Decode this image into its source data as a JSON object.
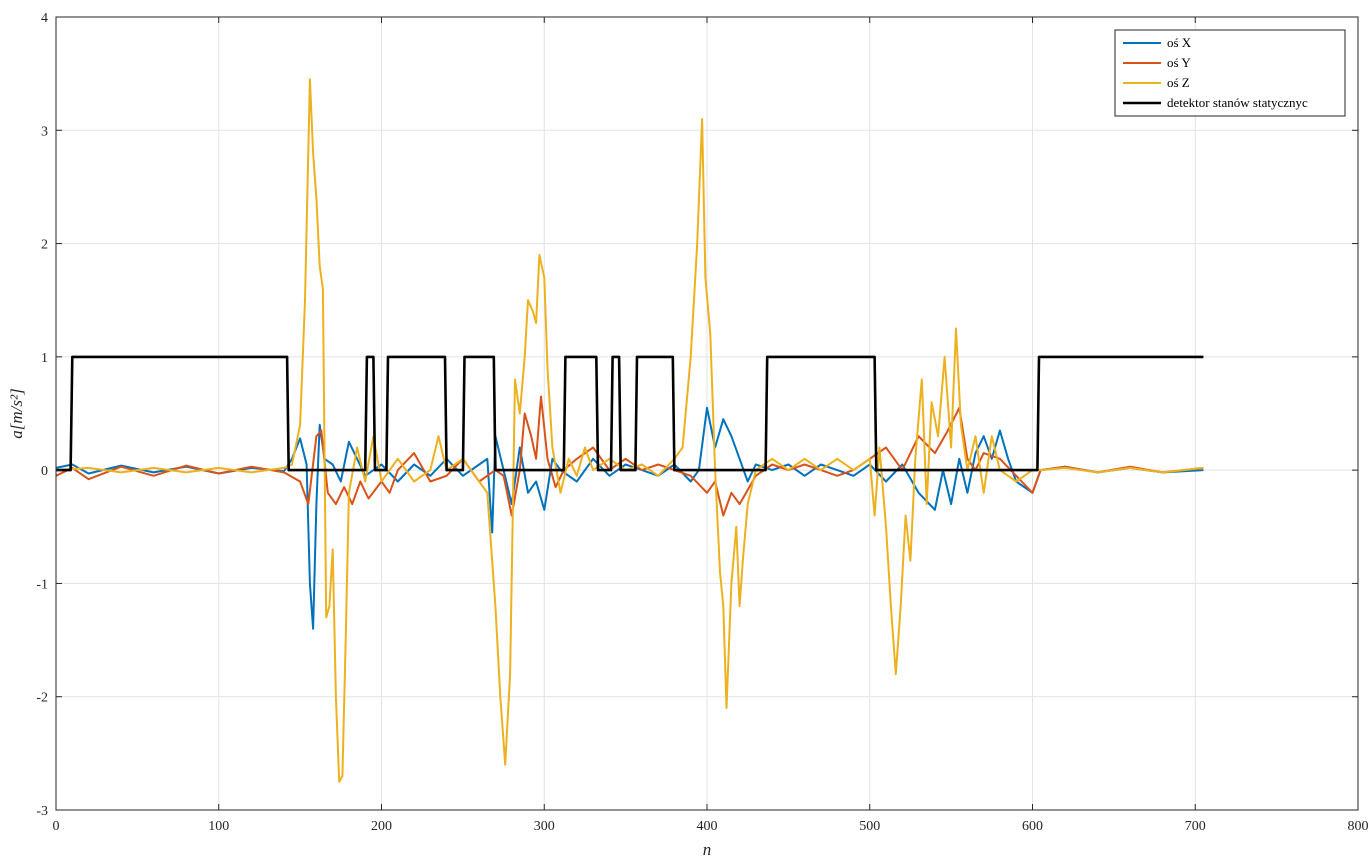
{
  "chart_data": {
    "type": "line",
    "title": "",
    "xlabel": "n",
    "ylabel": "a[m/s²]",
    "xlim": [
      0,
      800
    ],
    "ylim": [
      -3,
      4
    ],
    "xticks": [
      0,
      100,
      200,
      300,
      400,
      500,
      600,
      700,
      800
    ],
    "yticks": [
      -3,
      -2,
      -1,
      0,
      1,
      2,
      3,
      4
    ],
    "grid": true,
    "legend_position": "top-right",
    "series": [
      {
        "name": "oś X",
        "color": "#0072BD",
        "points": [
          [
            0,
            0.02
          ],
          [
            10,
            0.05
          ],
          [
            20,
            -0.03
          ],
          [
            40,
            0.04
          ],
          [
            60,
            -0.02
          ],
          [
            80,
            0.03
          ],
          [
            100,
            -0.03
          ],
          [
            120,
            0.02
          ],
          [
            140,
            -0.01
          ],
          [
            145,
            0.1
          ],
          [
            150,
            0.28
          ],
          [
            154,
            0.05
          ],
          [
            156,
            -1.0
          ],
          [
            158,
            -1.4
          ],
          [
            160,
            -0.3
          ],
          [
            162,
            0.4
          ],
          [
            165,
            0.1
          ],
          [
            170,
            0.05
          ],
          [
            175,
            -0.1
          ],
          [
            180,
            0.25
          ],
          [
            185,
            0.1
          ],
          [
            190,
            -0.05
          ],
          [
            200,
            0.05
          ],
          [
            210,
            -0.1
          ],
          [
            220,
            0.05
          ],
          [
            230,
            -0.05
          ],
          [
            240,
            0.1
          ],
          [
            250,
            -0.05
          ],
          [
            260,
            0.05
          ],
          [
            265,
            0.1
          ],
          [
            268,
            -0.55
          ],
          [
            270,
            0.3
          ],
          [
            275,
            0.0
          ],
          [
            280,
            -0.3
          ],
          [
            285,
            0.2
          ],
          [
            290,
            -0.2
          ],
          [
            295,
            -0.1
          ],
          [
            300,
            -0.35
          ],
          [
            305,
            0.1
          ],
          [
            310,
            0.0
          ],
          [
            320,
            -0.1
          ],
          [
            330,
            0.1
          ],
          [
            340,
            -0.05
          ],
          [
            350,
            0.05
          ],
          [
            360,
            0.0
          ],
          [
            370,
            -0.05
          ],
          [
            380,
            0.05
          ],
          [
            390,
            -0.1
          ],
          [
            395,
            0.0
          ],
          [
            400,
            0.55
          ],
          [
            405,
            0.2
          ],
          [
            410,
            0.45
          ],
          [
            415,
            0.3
          ],
          [
            420,
            0.1
          ],
          [
            425,
            -0.1
          ],
          [
            430,
            0.05
          ],
          [
            440,
            0.0
          ],
          [
            450,
            0.05
          ],
          [
            460,
            -0.05
          ],
          [
            470,
            0.05
          ],
          [
            480,
            0.0
          ],
          [
            490,
            -0.05
          ],
          [
            500,
            0.05
          ],
          [
            510,
            -0.1
          ],
          [
            520,
            0.05
          ],
          [
            530,
            -0.2
          ],
          [
            540,
            -0.35
          ],
          [
            545,
            0.0
          ],
          [
            550,
            -0.3
          ],
          [
            555,
            0.1
          ],
          [
            560,
            -0.2
          ],
          [
            565,
            0.15
          ],
          [
            570,
            0.3
          ],
          [
            575,
            0.1
          ],
          [
            580,
            0.35
          ],
          [
            585,
            0.1
          ],
          [
            590,
            -0.1
          ],
          [
            600,
            -0.2
          ],
          [
            605,
            0.0
          ],
          [
            620,
            0.03
          ],
          [
            640,
            -0.02
          ],
          [
            660,
            0.02
          ],
          [
            680,
            -0.02
          ],
          [
            705,
            0.0
          ]
        ]
      },
      {
        "name": "oś Y",
        "color": "#D95319",
        "points": [
          [
            0,
            -0.05
          ],
          [
            10,
            0.02
          ],
          [
            20,
            -0.08
          ],
          [
            40,
            0.03
          ],
          [
            60,
            -0.05
          ],
          [
            80,
            0.04
          ],
          [
            100,
            -0.03
          ],
          [
            120,
            0.03
          ],
          [
            140,
            -0.02
          ],
          [
            150,
            -0.1
          ],
          [
            155,
            -0.3
          ],
          [
            160,
            0.3
          ],
          [
            163,
            0.35
          ],
          [
            167,
            -0.2
          ],
          [
            172,
            -0.3
          ],
          [
            177,
            -0.15
          ],
          [
            182,
            -0.3
          ],
          [
            187,
            -0.1
          ],
          [
            192,
            -0.25
          ],
          [
            200,
            -0.1
          ],
          [
            205,
            -0.2
          ],
          [
            210,
            0.0
          ],
          [
            220,
            0.15
          ],
          [
            230,
            -0.1
          ],
          [
            240,
            -0.05
          ],
          [
            250,
            0.1
          ],
          [
            260,
            -0.1
          ],
          [
            270,
            0.0
          ],
          [
            275,
            -0.05
          ],
          [
            280,
            -0.4
          ],
          [
            285,
            0.0
          ],
          [
            288,
            0.5
          ],
          [
            292,
            0.3
          ],
          [
            295,
            0.1
          ],
          [
            298,
            0.65
          ],
          [
            302,
            0.1
          ],
          [
            307,
            -0.15
          ],
          [
            312,
            0.0
          ],
          [
            320,
            0.1
          ],
          [
            330,
            0.2
          ],
          [
            340,
            0.0
          ],
          [
            350,
            0.1
          ],
          [
            360,
            0.0
          ],
          [
            370,
            0.05
          ],
          [
            380,
            0.0
          ],
          [
            390,
            -0.05
          ],
          [
            400,
            -0.2
          ],
          [
            405,
            -0.1
          ],
          [
            410,
            -0.4
          ],
          [
            415,
            -0.2
          ],
          [
            420,
            -0.3
          ],
          [
            430,
            -0.05
          ],
          [
            440,
            0.05
          ],
          [
            450,
            0.0
          ],
          [
            460,
            0.05
          ],
          [
            470,
            0.0
          ],
          [
            480,
            -0.05
          ],
          [
            490,
            0.0
          ],
          [
            500,
            0.1
          ],
          [
            510,
            0.2
          ],
          [
            520,
            0.0
          ],
          [
            530,
            0.3
          ],
          [
            540,
            0.15
          ],
          [
            548,
            0.35
          ],
          [
            555,
            0.55
          ],
          [
            560,
            0.1
          ],
          [
            565,
            0.0
          ],
          [
            570,
            0.15
          ],
          [
            580,
            0.1
          ],
          [
            590,
            -0.05
          ],
          [
            600,
            -0.2
          ],
          [
            605,
            0.0
          ],
          [
            620,
            0.03
          ],
          [
            640,
            -0.02
          ],
          [
            660,
            0.03
          ],
          [
            680,
            -0.02
          ],
          [
            705,
            0.02
          ]
        ]
      },
      {
        "name": "oś Z",
        "color": "#EDB120",
        "points": [
          [
            0,
            0.0
          ],
          [
            20,
            0.02
          ],
          [
            40,
            -0.02
          ],
          [
            60,
            0.02
          ],
          [
            80,
            -0.02
          ],
          [
            100,
            0.02
          ],
          [
            120,
            -0.02
          ],
          [
            140,
            0.02
          ],
          [
            145,
            0.05
          ],
          [
            150,
            0.4
          ],
          [
            153,
            1.5
          ],
          [
            156,
            3.45
          ],
          [
            158,
            2.8
          ],
          [
            160,
            2.4
          ],
          [
            162,
            1.8
          ],
          [
            164,
            1.6
          ],
          [
            166,
            -1.3
          ],
          [
            168,
            -1.2
          ],
          [
            170,
            -0.7
          ],
          [
            172,
            -2.0
          ],
          [
            174,
            -2.75
          ],
          [
            176,
            -2.7
          ],
          [
            178,
            -1.5
          ],
          [
            180,
            -0.2
          ],
          [
            185,
            0.2
          ],
          [
            190,
            -0.1
          ],
          [
            195,
            0.3
          ],
          [
            200,
            -0.1
          ],
          [
            210,
            0.1
          ],
          [
            220,
            -0.1
          ],
          [
            230,
            0.0
          ],
          [
            235,
            0.3
          ],
          [
            240,
            0.0
          ],
          [
            250,
            0.1
          ],
          [
            260,
            -0.1
          ],
          [
            265,
            -0.2
          ],
          [
            270,
            -1.2
          ],
          [
            273,
            -2.0
          ],
          [
            276,
            -2.6
          ],
          [
            279,
            -1.8
          ],
          [
            282,
            0.8
          ],
          [
            285,
            0.5
          ],
          [
            288,
            1.0
          ],
          [
            290,
            1.5
          ],
          [
            293,
            1.4
          ],
          [
            295,
            1.3
          ],
          [
            297,
            1.9
          ],
          [
            300,
            1.7
          ],
          [
            302,
            0.9
          ],
          [
            305,
            0.2
          ],
          [
            310,
            -0.2
          ],
          [
            315,
            0.1
          ],
          [
            320,
            -0.05
          ],
          [
            325,
            0.2
          ],
          [
            330,
            0.0
          ],
          [
            340,
            0.1
          ],
          [
            350,
            0.0
          ],
          [
            360,
            0.05
          ],
          [
            370,
            -0.05
          ],
          [
            380,
            0.1
          ],
          [
            385,
            0.2
          ],
          [
            390,
            1.0
          ],
          [
            394,
            2.0
          ],
          [
            397,
            3.1
          ],
          [
            399,
            1.7
          ],
          [
            402,
            1.2
          ],
          [
            405,
            0.0
          ],
          [
            408,
            -0.9
          ],
          [
            410,
            -1.2
          ],
          [
            412,
            -2.1
          ],
          [
            415,
            -1.0
          ],
          [
            418,
            -0.5
          ],
          [
            420,
            -1.2
          ],
          [
            422,
            -0.8
          ],
          [
            425,
            -0.3
          ],
          [
            430,
            0.0
          ],
          [
            440,
            0.1
          ],
          [
            450,
            0.0
          ],
          [
            460,
            0.1
          ],
          [
            470,
            0.0
          ],
          [
            480,
            0.1
          ],
          [
            490,
            0.0
          ],
          [
            500,
            0.1
          ],
          [
            503,
            -0.4
          ],
          [
            506,
            0.2
          ],
          [
            510,
            -0.5
          ],
          [
            513,
            -1.2
          ],
          [
            516,
            -1.8
          ],
          [
            519,
            -1.2
          ],
          [
            522,
            -0.4
          ],
          [
            525,
            -0.8
          ],
          [
            528,
            0.1
          ],
          [
            532,
            0.8
          ],
          [
            535,
            -0.3
          ],
          [
            538,
            0.6
          ],
          [
            542,
            0.3
          ],
          [
            546,
            1.0
          ],
          [
            550,
            0.2
          ],
          [
            553,
            1.25
          ],
          [
            556,
            0.4
          ],
          [
            560,
            0.0
          ],
          [
            565,
            0.3
          ],
          [
            570,
            -0.2
          ],
          [
            575,
            0.3
          ],
          [
            580,
            0.0
          ],
          [
            590,
            -0.1
          ],
          [
            600,
            0.0
          ],
          [
            605,
            0.0
          ],
          [
            620,
            0.02
          ],
          [
            640,
            -0.02
          ],
          [
            660,
            0.02
          ],
          [
            680,
            -0.02
          ],
          [
            705,
            0.02
          ]
        ]
      },
      {
        "name": "detektor stanów statycznyc",
        "color": "#000000",
        "points": [
          [
            0,
            0
          ],
          [
            9,
            0
          ],
          [
            10,
            1
          ],
          [
            142,
            1
          ],
          [
            143,
            0
          ],
          [
            190,
            0
          ],
          [
            191,
            1
          ],
          [
            195,
            1
          ],
          [
            196,
            0
          ],
          [
            203,
            0
          ],
          [
            204,
            1
          ],
          [
            239,
            1
          ],
          [
            240,
            0
          ],
          [
            250,
            0
          ],
          [
            251,
            1
          ],
          [
            269,
            1
          ],
          [
            270,
            0
          ],
          [
            312,
            0
          ],
          [
            313,
            1
          ],
          [
            332,
            1
          ],
          [
            333,
            0
          ],
          [
            341,
            0
          ],
          [
            342,
            1
          ],
          [
            346,
            1
          ],
          [
            347,
            0
          ],
          [
            356,
            0
          ],
          [
            357,
            1
          ],
          [
            379,
            1
          ],
          [
            380,
            0
          ],
          [
            436,
            0
          ],
          [
            437,
            1
          ],
          [
            503,
            1
          ],
          [
            504,
            0
          ],
          [
            603,
            0
          ],
          [
            604,
            1
          ],
          [
            705,
            1
          ]
        ]
      }
    ]
  }
}
